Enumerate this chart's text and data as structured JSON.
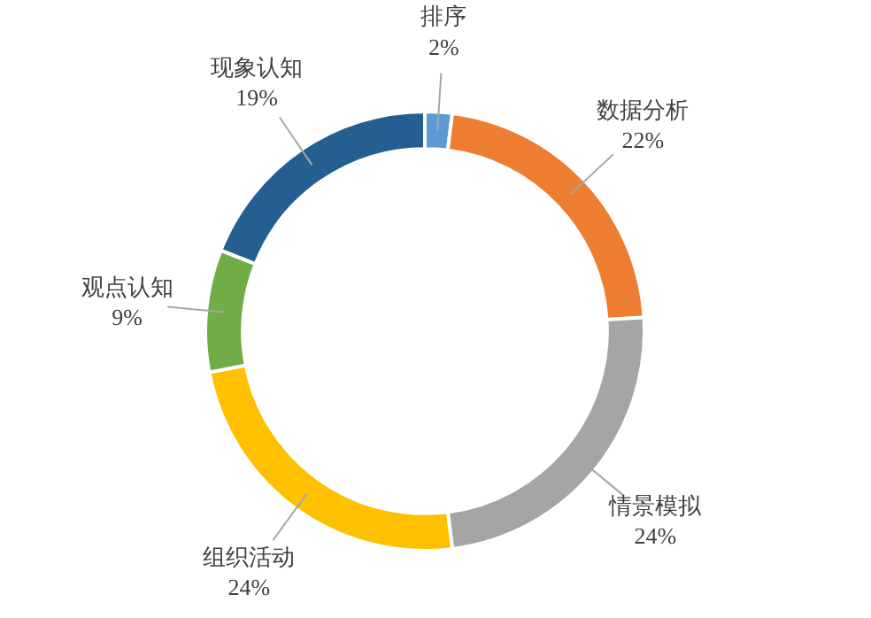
{
  "chart_data": {
    "type": "donut",
    "categories": [
      "排序",
      "数据分析",
      "情景模拟",
      "组织活动",
      "观点认知",
      "现象认知"
    ],
    "values": [
      2,
      22,
      24,
      24,
      9,
      19
    ],
    "value_labels": [
      "2%",
      "22%",
      "24%",
      "24%",
      "9%",
      "19%"
    ],
    "colors": [
      "#5b9bd5",
      "#ed7d31",
      "#a5a5a5",
      "#ffc000",
      "#70ad47",
      "#255e91"
    ],
    "legend": false
  }
}
